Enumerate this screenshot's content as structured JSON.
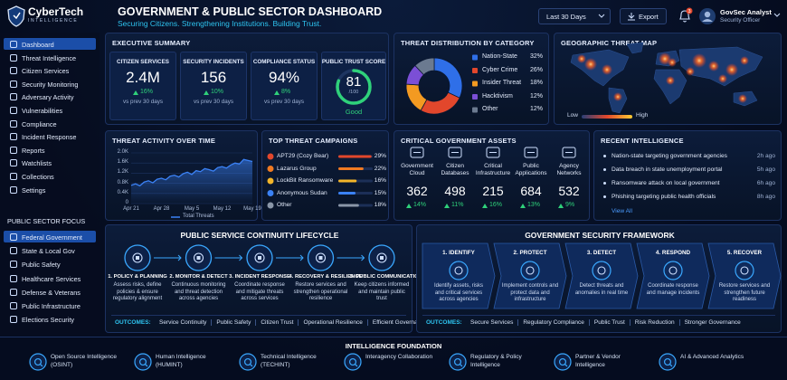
{
  "header": {
    "logo": "CyberTech",
    "logo_sub": "INTELLIGENCE",
    "title": "GOVERNMENT & PUBLIC SECTOR DASHBOARD",
    "subtitle": "Securing Citizens. Strengthening Institutions. Building Trust.",
    "period": "Last 30 Days",
    "export": "Export",
    "notifications": 3,
    "user_name": "GovSec Analyst",
    "user_role": "Security Officer"
  },
  "sidebar": {
    "nav": [
      "Dashboard",
      "Threat Intelligence",
      "Citizen Services",
      "Security Monitoring",
      "Adversary Activity",
      "Vulnerabilities",
      "Compliance",
      "Incident Response",
      "Reports",
      "Watchlists",
      "Collections",
      "Settings"
    ],
    "focus_title": "PUBLIC SECTOR FOCUS",
    "focus": [
      "Federal Government",
      "State & Local Gov",
      "Public Safety",
      "Healthcare Services",
      "Defense & Veterans",
      "Public Infrastructure",
      "Elections Security"
    ]
  },
  "executive_summary": {
    "title": "EXECUTIVE SUMMARY",
    "kpis": [
      {
        "label": "CITIZEN SERVICES",
        "value": "2.4M",
        "change": "16%",
        "note": "vs prev 30 days"
      },
      {
        "label": "SECURITY INCIDENTS",
        "value": "156",
        "change": "10%",
        "note": "vs prev 30 days"
      },
      {
        "label": "COMPLIANCE STATUS",
        "value": "94%",
        "change": "8%",
        "note": "vs prev 30 days"
      }
    ],
    "trust": {
      "label": "PUBLIC TRUST SCORE",
      "value": 81,
      "lim": [
        0,
        100
      ],
      "max_label": "/100",
      "rating": "Good"
    }
  },
  "threat_distribution": {
    "type": "pie",
    "title": "THREAT DISTRIBUTION BY CATEGORY",
    "categories": [
      "Nation-State",
      "Cyber Crime",
      "Insider Threat",
      "Hacktivism",
      "Other"
    ],
    "values": [
      32,
      26,
      18,
      12,
      12
    ],
    "value_labels": [
      "32%",
      "26%",
      "18%",
      "12%",
      "12%"
    ],
    "colors": [
      "#2f6fe8",
      "#e2472c",
      "#f39a21",
      "#7b4fd6",
      "#6b7a90"
    ]
  },
  "geo_map": {
    "title": "GEOGRAPHIC THREAT MAP",
    "legend_low": "Low",
    "legend_high": "High"
  },
  "threat_activity": {
    "type": "line",
    "title": "THREAT ACTIVITY OVER TIME",
    "categories": [
      "Apr 21",
      null,
      null,
      null,
      null,
      null,
      null,
      "Apr 28",
      null,
      null,
      null,
      null,
      null,
      null,
      "May 5",
      null,
      null,
      null,
      null,
      null,
      null,
      "May 12",
      null,
      null,
      null,
      null,
      null,
      null,
      "May 19"
    ],
    "values": [
      720,
      780,
      700,
      850,
      900,
      820,
      960,
      1000,
      940,
      1080,
      1120,
      1050,
      1180,
      1240,
      1150,
      1300,
      1260,
      1380,
      1340,
      1280,
      1420,
      1460,
      1400,
      1520,
      1600,
      1560,
      1740,
      1700,
      1660
    ],
    "color": "#3b82f6",
    "ylim": [
      0,
      2000
    ],
    "yticks": [
      0,
      {
        "value": 400,
        "label": "0.4K"
      },
      {
        "value": 800,
        "label": "0.8K"
      },
      {
        "value": 1200,
        "label": "1.2K"
      },
      {
        "value": 1600,
        "label": "1.6K"
      },
      {
        "value": 2000,
        "label": "2.0K"
      }
    ],
    "grid": true,
    "legend": "Total Threats"
  },
  "campaigns": {
    "type": "bar",
    "title": "TOP THREAT CAMPAIGNS",
    "categories": [
      "APT29 (Cozy Bear)",
      "Lazarus Group",
      "LockBit Ransomware",
      "Anonymous Sudan",
      "Other"
    ],
    "values": [
      29,
      22,
      16,
      15,
      18
    ],
    "value_labels": [
      "29%",
      "22%",
      "16%",
      "15%",
      "18%"
    ],
    "colors": [
      "#e2472c",
      "#f07a22",
      "#f3b52a",
      "#3b82f6",
      "#8a96a8"
    ],
    "xlim": [
      0,
      30
    ]
  },
  "assets": {
    "title": "CRITICAL GOVERNMENT ASSETS",
    "items": [
      {
        "name": "Government Cloud",
        "value": 362,
        "change": "14%"
      },
      {
        "name": "Citizen Databases",
        "value": 498,
        "change": "11%"
      },
      {
        "name": "Critical Infrastructure",
        "value": 215,
        "change": "16%"
      },
      {
        "name": "Public Applications",
        "value": 684,
        "change": "13%"
      },
      {
        "name": "Agency Networks",
        "value": 532,
        "change": "9%"
      }
    ]
  },
  "recent_intel": {
    "title": "RECENT INTELLIGENCE",
    "items": [
      {
        "text": "Nation-state targeting government agencies",
        "time": "2h ago"
      },
      {
        "text": "Data breach in state unemployment portal",
        "time": "5h ago"
      },
      {
        "text": "Ransomware attack on local government",
        "time": "6h ago"
      },
      {
        "text": "Phishing targeting public health officials",
        "time": "8h ago"
      }
    ],
    "view_all": "View All"
  },
  "lifecycle": {
    "title": "PUBLIC SERVICE CONTINUITY LIFECYCLE",
    "steps": [
      {
        "title": "1. POLICY & PLANNING",
        "text": "Assess risks, define policies & ensure regulatory alignment"
      },
      {
        "title": "2. MONITOR & DETECT",
        "text": "Continuous monitoring and threat detection across agencies"
      },
      {
        "title": "3. INCIDENT RESPONSE",
        "text": "Coordinate response and mitigate threats across services"
      },
      {
        "title": "4. RECOVERY & RESILIENCE",
        "text": "Restore services and strengthen operational resilience"
      },
      {
        "title": "5. PUBLIC COMMUNICATION",
        "text": "Keep citizens informed and maintain public trust"
      }
    ],
    "outcomes_label": "OUTCOMES:",
    "outcomes": [
      "Service Continuity",
      "Public Safety",
      "Citizen Trust",
      "Operational Resilience",
      "Efficient Governance"
    ]
  },
  "framework": {
    "title": "GOVERNMENT SECURITY FRAMEWORK",
    "steps": [
      {
        "title": "1. IDENTIFY",
        "text": "Identify assets, risks and critical services across agencies"
      },
      {
        "title": "2. PROTECT",
        "text": "Implement controls and protect data and infrastructure"
      },
      {
        "title": "3. DETECT",
        "text": "Detect threats and anomalies in real time"
      },
      {
        "title": "4. RESPOND",
        "text": "Coordinate response and manage incidents"
      },
      {
        "title": "5. RECOVER",
        "text": "Restore services and strengthen future readiness"
      }
    ],
    "outcomes_label": "OUTCOMES:",
    "outcomes": [
      "Secure Services",
      "Regulatory Compliance",
      "Public Trust",
      "Risk Reduction",
      "Stronger Governance"
    ]
  },
  "foundation": {
    "title": "INTELLIGENCE FOUNDATION",
    "items": [
      "Open Source Intelligence (OSINT)",
      "Human Intelligence (HUMINT)",
      "Technical Intelligence (TECHINT)",
      "Interagency Collaboration",
      "Regulatory & Policy Intelligence",
      "Partner & Vendor Intelligence",
      "AI & Advanced Analytics"
    ]
  }
}
